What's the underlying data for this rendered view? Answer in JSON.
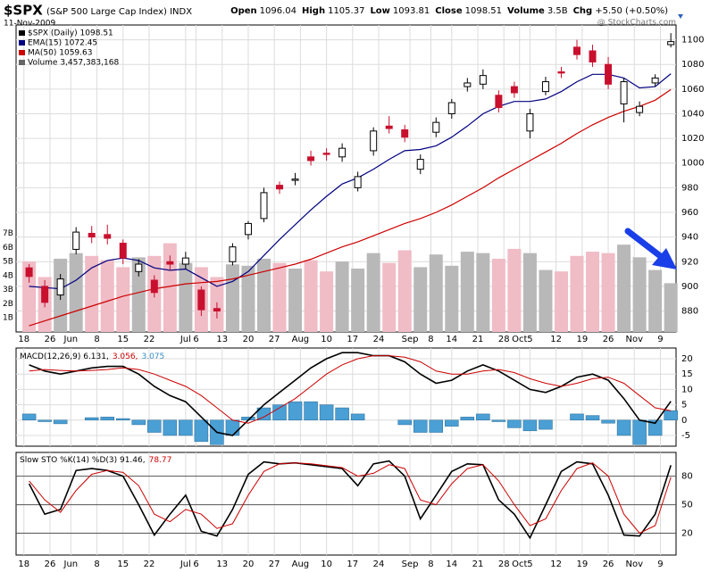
{
  "chart_data": [
    {
      "type": "candlestick",
      "title": "$SPX",
      "subtitle": "(S&P 500 Large Cap Index) INDX",
      "date": "11-Nov-2009",
      "watermark": "@ StockCharts.com",
      "stats": [
        {
          "label": "Open",
          "value": "1096.04"
        },
        {
          "label": "High",
          "value": "1105.37"
        },
        {
          "label": "Low",
          "value": "1093.81"
        },
        {
          "label": "Close",
          "value": "1098.51"
        },
        {
          "label": "Volume",
          "value": "3.5B"
        },
        {
          "label": "Chg",
          "value": "+5.50 (+0.50%)"
        }
      ],
      "ohlc_name": "$SPX (Daily) 1098.51",
      "volume_name": "Volume 3,457,383,168",
      "colors": {
        "up": "#ffffff",
        "down": "#c8102e",
        "up_volume": "#b8b8b8",
        "down_volume": "#f0bcc6"
      },
      "x": [
        1,
        4,
        7,
        10,
        13,
        16,
        19,
        22,
        25,
        28,
        31,
        34,
        37,
        40,
        43,
        46,
        49,
        52,
        55,
        58,
        61,
        64,
        67,
        70,
        73,
        76,
        79,
        82,
        85,
        88,
        91,
        94,
        97,
        100,
        103,
        106,
        109,
        112,
        115,
        118,
        121,
        124
      ],
      "open": [
        915,
        900,
        893,
        930,
        943,
        942,
        935,
        912,
        905,
        920,
        918,
        897,
        882,
        920,
        942,
        955,
        982,
        986,
        1005,
        1008,
        1005,
        980,
        1010,
        1030,
        1027,
        995,
        1025,
        1040,
        1062,
        1064,
        1055,
        1062,
        1026,
        1058,
        1074,
        1094,
        1091,
        1080,
        1048,
        1041,
        1065,
        1096.04
      ],
      "high": [
        918,
        905,
        910,
        948,
        949,
        950,
        938,
        922,
        909,
        925,
        928,
        900,
        887,
        935,
        953,
        980,
        985,
        992,
        1010,
        1012,
        1016,
        993,
        1029,
        1038,
        1031,
        1007,
        1037,
        1052,
        1069,
        1076,
        1059,
        1066,
        1044,
        1070,
        1078,
        1100,
        1096,
        1086,
        1069,
        1050,
        1072,
        1105.37
      ],
      "low": [
        903,
        883,
        889,
        926,
        935,
        934,
        918,
        908,
        891,
        913,
        914,
        876,
        874,
        917,
        938,
        952,
        975,
        982,
        998,
        1002,
        1001,
        977,
        1006,
        1024,
        1017,
        991,
        1021,
        1036,
        1058,
        1060,
        1041,
        1053,
        1020,
        1055,
        1069,
        1084,
        1078,
        1060,
        1033,
        1038,
        1062,
        1093.81
      ],
      "close": [
        908,
        887,
        906,
        944,
        940,
        939,
        923,
        918,
        895,
        918,
        923,
        881,
        880,
        932,
        951,
        976,
        979,
        987,
        1002,
        1007,
        1012,
        989,
        1026,
        1028,
        1021,
        1003,
        1033,
        1049,
        1065,
        1071,
        1045,
        1057,
        1040,
        1066,
        1073,
        1088,
        1082,
        1064,
        1066,
        1046,
        1069,
        1098.51
      ],
      "volume": [
        5.0,
        3.9,
        5.2,
        5.6,
        5.4,
        5.1,
        4.6,
        5.3,
        5.4,
        6.3,
        4.9,
        4.6,
        3.9,
        4.8,
        4.7,
        5.2,
        4.9,
        4.5,
        5.1,
        4.3,
        5.0,
        4.5,
        5.6,
        4.9,
        5.8,
        4.6,
        5.5,
        4.7,
        5.7,
        5.6,
        5.2,
        5.9,
        5.6,
        4.4,
        4.3,
        5.4,
        5.7,
        5.6,
        6.2,
        5.3,
        4.4,
        3.46
      ],
      "series": [
        {
          "name": "EMA(15) 1072.45",
          "color": "#000080",
          "values": [
            900,
            899,
            898,
            905,
            915,
            921,
            923,
            921,
            915,
            913,
            914,
            907,
            900,
            904,
            912,
            925,
            938,
            950,
            962,
            973,
            983,
            988,
            995,
            1003,
            1010,
            1011,
            1014,
            1021,
            1030,
            1040,
            1046,
            1050,
            1050,
            1052,
            1058,
            1066,
            1072,
            1072,
            1069,
            1061,
            1062,
            1072.45
          ]
        },
        {
          "name": "MA(50) 1059.63",
          "color": "#cc0000",
          "values": [
            868,
            872,
            876,
            880,
            884,
            888,
            892,
            895,
            898,
            900,
            902,
            903,
            904,
            906,
            909,
            912,
            915,
            918,
            922,
            927,
            932,
            936,
            941,
            946,
            951,
            955,
            960,
            966,
            973,
            980,
            988,
            995,
            1002,
            1009,
            1016,
            1024,
            1031,
            1037,
            1042,
            1046,
            1051,
            1059.63
          ]
        }
      ],
      "xlim": [
        -1.5,
        125
      ],
      "xticks": [
        {
          "value": 0,
          "label": "18"
        },
        {
          "value": 5,
          "label": "26"
        },
        {
          "value": 9,
          "label": "Jun"
        },
        {
          "value": 14,
          "label": "8"
        },
        {
          "value": 19,
          "label": "15"
        },
        {
          "value": 24,
          "label": "22"
        },
        {
          "value": 31,
          "label": "Jul"
        },
        {
          "value": 33,
          "label": "6"
        },
        {
          "value": 38,
          "label": "13"
        },
        {
          "value": 43,
          "label": "20"
        },
        {
          "value": 48,
          "label": "27"
        },
        {
          "value": 53,
          "label": "Aug"
        },
        {
          "value": 58,
          "label": "10"
        },
        {
          "value": 63,
          "label": "17"
        },
        {
          "value": 68,
          "label": "24"
        },
        {
          "value": 74,
          "label": "Sep"
        },
        {
          "value": 78,
          "label": "8"
        },
        {
          "value": 82,
          "label": "14"
        },
        {
          "value": 87,
          "label": "21"
        },
        {
          "value": 92,
          "label": "28"
        },
        {
          "value": 95,
          "label": "Oct"
        },
        {
          "value": 97,
          "label": "5"
        },
        {
          "value": 102,
          "label": "12"
        },
        {
          "value": 107,
          "label": "19"
        },
        {
          "value": 112,
          "label": "26"
        },
        {
          "value": 117,
          "label": "Nov"
        },
        {
          "value": 122,
          "label": "9"
        }
      ],
      "ylim": [
        863,
        1112
      ],
      "yticks": [
        880,
        900,
        920,
        940,
        960,
        980,
        1000,
        1020,
        1040,
        1060,
        1080,
        1100
      ],
      "vlim": [
        0,
        21.8
      ],
      "vticks": [
        {
          "value": 1,
          "label": "1B"
        },
        {
          "value": 2,
          "label": "2B"
        },
        {
          "value": 3,
          "label": "3B"
        },
        {
          "value": 4,
          "label": "4B"
        },
        {
          "value": 5,
          "label": "5B"
        },
        {
          "value": 6,
          "label": "6B"
        },
        {
          "value": 7,
          "label": "7B"
        }
      ],
      "grid": true
    },
    {
      "type": "macd",
      "legend": [
        {
          "text": "MACD(12,26,9) 6.131,",
          "color": "#000000"
        },
        {
          "text": "3.056,",
          "color": "#cc0000"
        },
        {
          "text": "3.075",
          "color": "#3a8fc8"
        }
      ],
      "series": [
        {
          "color": "#000000",
          "values": [
            18,
            16,
            15,
            16,
            17,
            17.5,
            17.5,
            15,
            11,
            8,
            6,
            1,
            -4,
            -5,
            0,
            5,
            9,
            13,
            17,
            20,
            22,
            22,
            21,
            21,
            19,
            15,
            12,
            13,
            16,
            18,
            16,
            13,
            10,
            9,
            11,
            14,
            15,
            13,
            7,
            0,
            -1,
            6.131
          ]
        },
        {
          "color": "#cc0000",
          "values": [
            16,
            16.5,
            16.2,
            16,
            16.2,
            16.5,
            17,
            16.5,
            15,
            13,
            11,
            8,
            4,
            0,
            -1,
            1,
            4,
            7,
            11,
            15,
            18,
            20,
            21,
            21,
            20.5,
            19,
            16,
            15,
            15,
            16,
            16.5,
            15.5,
            13.5,
            12,
            11,
            12,
            13.5,
            14,
            12,
            8,
            4,
            3.056
          ]
        }
      ],
      "histogram": {
        "color": "#4a9fd4",
        "values": [
          2,
          -0.5,
          -1.2,
          0,
          0.8,
          1,
          0.5,
          -1.5,
          -4,
          -5,
          -5,
          -7,
          -8,
          -5,
          1,
          4,
          5,
          6,
          6,
          5,
          4,
          2,
          0,
          0,
          -1.5,
          -4,
          -4,
          -2,
          1,
          2,
          -0.5,
          -2.5,
          -3.5,
          -3,
          0,
          2,
          1.5,
          -1,
          -5,
          -8,
          -5,
          3.075
        ]
      },
      "ylim": [
        -8.5,
        23.5
      ],
      "yticks": [
        -5,
        0,
        5,
        10,
        15,
        20
      ],
      "grid": true
    },
    {
      "type": "stochastic",
      "legend": [
        {
          "text": "Slow STO %K(14) %D(3) 91.46,",
          "color": "#000000"
        },
        {
          "text": "78.77",
          "color": "#cc0000"
        }
      ],
      "series": [
        {
          "color": "#000000",
          "values": [
            72,
            40,
            45,
            86,
            88,
            86,
            80,
            50,
            18,
            40,
            60,
            22,
            17,
            45,
            82,
            95,
            93,
            94,
            92,
            90,
            88,
            70,
            93,
            96,
            80,
            35,
            60,
            85,
            93,
            92,
            55,
            40,
            15,
            50,
            85,
            95,
            93,
            60,
            18,
            17,
            40,
            91.46
          ]
        },
        {
          "color": "#cc0000",
          "values": [
            75,
            55,
            42,
            65,
            82,
            86,
            84,
            70,
            40,
            32,
            45,
            40,
            25,
            30,
            60,
            85,
            93,
            94,
            93,
            91,
            89,
            80,
            83,
            92,
            88,
            55,
            50,
            72,
            88,
            92,
            75,
            50,
            28,
            35,
            65,
            88,
            94,
            80,
            40,
            20,
            28,
            78.77
          ]
        }
      ],
      "ylim": [
        -3,
        105
      ],
      "yticks": [
        20,
        50,
        80
      ],
      "grid": true
    }
  ]
}
